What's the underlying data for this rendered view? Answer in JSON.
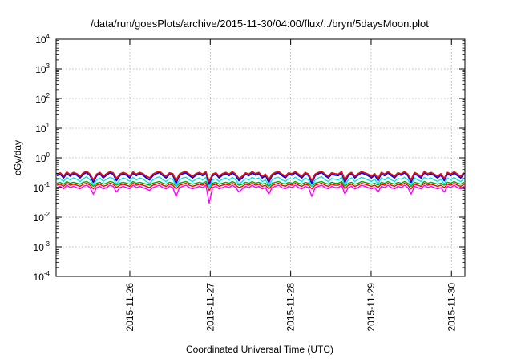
{
  "chart_data": {
    "type": "line",
    "title": "/data/run/goesPlots/archive/2015-11-30/04:00/flux/../bryn/5daysMoon.plot",
    "xlabel": "Coordinated Universal Time (UTC)",
    "ylabel": "cGy/day",
    "yscale": "log",
    "ylim": [
      0.0001,
      10000
    ],
    "xlim": [
      "2015-11-25T02:00",
      "2015-11-30T04:00"
    ],
    "grid": true,
    "y_ticks": [
      {
        "base": "10",
        "exp": "-4",
        "value": 0.0001
      },
      {
        "base": "10",
        "exp": "-3",
        "value": 0.001
      },
      {
        "base": "10",
        "exp": "-2",
        "value": 0.01
      },
      {
        "base": "10",
        "exp": "-1",
        "value": 0.1
      },
      {
        "base": "10",
        "exp": "0",
        "value": 1
      },
      {
        "base": "10",
        "exp": "1",
        "value": 10
      },
      {
        "base": "10",
        "exp": "2",
        "value": 100
      },
      {
        "base": "10",
        "exp": "3",
        "value": 1000
      },
      {
        "base": "10",
        "exp": "4",
        "value": 10000
      }
    ],
    "x_ticks": [
      "2015-11-26",
      "2015-11-27",
      "2015-11-28",
      "2015-11-29",
      "2015-11-30"
    ],
    "x_tick_values": [
      "2015-11-26T00:00",
      "2015-11-27T00:00",
      "2015-11-28T00:00",
      "2015-11-29T00:00",
      "2015-11-30T00:00"
    ],
    "series": [
      {
        "color": "#ff00ff",
        "typical": 0.1,
        "spike": 0.04,
        "values": [
          0.1,
          0.11,
          0.09,
          0.12,
          0.1,
          0.11,
          0.1,
          0.09,
          0.11,
          0.12,
          0.1,
          0.06,
          0.1,
          0.11,
          0.09,
          0.1,
          0.12,
          0.11,
          0.07,
          0.1,
          0.11,
          0.1,
          0.09,
          0.12,
          0.1,
          0.11,
          0.1,
          0.09,
          0.08,
          0.1,
          0.11,
          0.12,
          0.1,
          0.09,
          0.11,
          0.1,
          0.05,
          0.1,
          0.11,
          0.12,
          0.1,
          0.09,
          0.1,
          0.11,
          0.1,
          0.12,
          0.03,
          0.1,
          0.11,
          0.09,
          0.1,
          0.11,
          0.1,
          0.12,
          0.1,
          0.07,
          0.09,
          0.11,
          0.1,
          0.12,
          0.1,
          0.11,
          0.09,
          0.1,
          0.06,
          0.1,
          0.11,
          0.12,
          0.1,
          0.09,
          0.11,
          0.1,
          0.12,
          0.1,
          0.09,
          0.11,
          0.1,
          0.05,
          0.1,
          0.11,
          0.12,
          0.1,
          0.09,
          0.11,
          0.1,
          0.1,
          0.12,
          0.06,
          0.1,
          0.11,
          0.09,
          0.1,
          0.12,
          0.11,
          0.1,
          0.09,
          0.1,
          0.07,
          0.11,
          0.1,
          0.12,
          0.1,
          0.09,
          0.11,
          0.1,
          0.12,
          0.1,
          0.06,
          0.11,
          0.1,
          0.09,
          0.12,
          0.1,
          0.11,
          0.1,
          0.09,
          0.1,
          0.07,
          0.11,
          0.1,
          0.12,
          0.1,
          0.09,
          0.11
        ]
      },
      {
        "color": "#ff0000",
        "typical": 0.12,
        "values": [
          0.12,
          0.13,
          0.11,
          0.14,
          0.12,
          0.13,
          0.12,
          0.11,
          0.13,
          0.14,
          0.12,
          0.09,
          0.12,
          0.13,
          0.11,
          0.12,
          0.14,
          0.13,
          0.1,
          0.12,
          0.13,
          0.12,
          0.11,
          0.14,
          0.12,
          0.13,
          0.12,
          0.11,
          0.1,
          0.12,
          0.13,
          0.14,
          0.12,
          0.11,
          0.13,
          0.12,
          0.09,
          0.12,
          0.13,
          0.14,
          0.12,
          0.11,
          0.12,
          0.13,
          0.12,
          0.14,
          0.08,
          0.12,
          0.13,
          0.11,
          0.12,
          0.13,
          0.12,
          0.14,
          0.12,
          0.1,
          0.11,
          0.13,
          0.12,
          0.14,
          0.12,
          0.13,
          0.11,
          0.12,
          0.09,
          0.12,
          0.13,
          0.14,
          0.12,
          0.11,
          0.13,
          0.12,
          0.14,
          0.12,
          0.11,
          0.13,
          0.12,
          0.09,
          0.12,
          0.13,
          0.14,
          0.12,
          0.11,
          0.13,
          0.12,
          0.12,
          0.14,
          0.09,
          0.12,
          0.13,
          0.11,
          0.12,
          0.14,
          0.13,
          0.12,
          0.11,
          0.12,
          0.1,
          0.13,
          0.12,
          0.14,
          0.12,
          0.11,
          0.13,
          0.12,
          0.14,
          0.12,
          0.09,
          0.13,
          0.12,
          0.11,
          0.14,
          0.12,
          0.13,
          0.12,
          0.11,
          0.12,
          0.1,
          0.13,
          0.12,
          0.14,
          0.12,
          0.11,
          0.13
        ]
      },
      {
        "color": "#00aa00",
        "typical": 0.14,
        "values": [
          0.14,
          0.15,
          0.13,
          0.16,
          0.14,
          0.15,
          0.14,
          0.13,
          0.15,
          0.16,
          0.14,
          0.11,
          0.14,
          0.15,
          0.13,
          0.14,
          0.16,
          0.15,
          0.12,
          0.14,
          0.15,
          0.14,
          0.13,
          0.16,
          0.14,
          0.15,
          0.14,
          0.13,
          0.12,
          0.14,
          0.15,
          0.16,
          0.14,
          0.13,
          0.15,
          0.14,
          0.11,
          0.14,
          0.15,
          0.16,
          0.14,
          0.13,
          0.14,
          0.15,
          0.14,
          0.16,
          0.1,
          0.14,
          0.15,
          0.13,
          0.14,
          0.15,
          0.14,
          0.16,
          0.14,
          0.12,
          0.13,
          0.15,
          0.14,
          0.16,
          0.14,
          0.15,
          0.13,
          0.14,
          0.11,
          0.14,
          0.15,
          0.16,
          0.14,
          0.13,
          0.15,
          0.14,
          0.16,
          0.14,
          0.13,
          0.15,
          0.14,
          0.11,
          0.14,
          0.15,
          0.16,
          0.14,
          0.13,
          0.15,
          0.14,
          0.14,
          0.16,
          0.11,
          0.14,
          0.15,
          0.13,
          0.14,
          0.16,
          0.15,
          0.14,
          0.13,
          0.14,
          0.12,
          0.15,
          0.14,
          0.16,
          0.14,
          0.13,
          0.15,
          0.14,
          0.16,
          0.14,
          0.11,
          0.15,
          0.14,
          0.13,
          0.16,
          0.14,
          0.15,
          0.14,
          0.13,
          0.14,
          0.12,
          0.15,
          0.14,
          0.16,
          0.14,
          0.13,
          0.15
        ]
      },
      {
        "color": "#00e5e5",
        "typical": 0.18,
        "values": [
          0.18,
          0.2,
          0.16,
          0.22,
          0.18,
          0.21,
          0.19,
          0.16,
          0.2,
          0.23,
          0.18,
          0.12,
          0.18,
          0.21,
          0.16,
          0.19,
          0.22,
          0.2,
          0.13,
          0.18,
          0.21,
          0.19,
          0.16,
          0.22,
          0.18,
          0.21,
          0.19,
          0.16,
          0.14,
          0.18,
          0.21,
          0.23,
          0.18,
          0.16,
          0.2,
          0.19,
          0.11,
          0.18,
          0.21,
          0.22,
          0.18,
          0.16,
          0.19,
          0.21,
          0.18,
          0.22,
          0.1,
          0.18,
          0.2,
          0.16,
          0.19,
          0.21,
          0.18,
          0.22,
          0.18,
          0.13,
          0.16,
          0.2,
          0.18,
          0.22,
          0.19,
          0.21,
          0.16,
          0.18,
          0.12,
          0.18,
          0.21,
          0.22,
          0.18,
          0.16,
          0.2,
          0.19,
          0.22,
          0.18,
          0.16,
          0.21,
          0.18,
          0.11,
          0.18,
          0.21,
          0.23,
          0.18,
          0.16,
          0.2,
          0.19,
          0.18,
          0.22,
          0.12,
          0.18,
          0.21,
          0.16,
          0.19,
          0.22,
          0.2,
          0.18,
          0.16,
          0.19,
          0.13,
          0.21,
          0.18,
          0.22,
          0.18,
          0.16,
          0.2,
          0.19,
          0.22,
          0.18,
          0.12,
          0.21,
          0.18,
          0.16,
          0.22,
          0.19,
          0.21,
          0.18,
          0.16,
          0.19,
          0.13,
          0.21,
          0.18,
          0.22,
          0.18,
          0.16,
          0.2
        ]
      },
      {
        "color": "#0000ff",
        "typical": 0.25,
        "values": [
          0.25,
          0.28,
          0.21,
          0.3,
          0.24,
          0.29,
          0.26,
          0.21,
          0.28,
          0.32,
          0.25,
          0.15,
          0.25,
          0.29,
          0.21,
          0.26,
          0.31,
          0.28,
          0.17,
          0.25,
          0.29,
          0.26,
          0.21,
          0.3,
          0.25,
          0.29,
          0.26,
          0.21,
          0.18,
          0.25,
          0.29,
          0.32,
          0.25,
          0.21,
          0.28,
          0.26,
          0.14,
          0.25,
          0.29,
          0.31,
          0.25,
          0.21,
          0.26,
          0.29,
          0.25,
          0.31,
          0.13,
          0.25,
          0.28,
          0.21,
          0.26,
          0.29,
          0.25,
          0.31,
          0.25,
          0.17,
          0.21,
          0.28,
          0.25,
          0.31,
          0.26,
          0.29,
          0.21,
          0.25,
          0.15,
          0.25,
          0.29,
          0.31,
          0.25,
          0.21,
          0.28,
          0.26,
          0.31,
          0.25,
          0.21,
          0.29,
          0.25,
          0.14,
          0.25,
          0.29,
          0.32,
          0.25,
          0.21,
          0.28,
          0.26,
          0.25,
          0.31,
          0.15,
          0.25,
          0.29,
          0.21,
          0.26,
          0.31,
          0.28,
          0.25,
          0.21,
          0.26,
          0.17,
          0.29,
          0.25,
          0.31,
          0.25,
          0.21,
          0.28,
          0.26,
          0.31,
          0.25,
          0.15,
          0.29,
          0.25,
          0.21,
          0.31,
          0.26,
          0.29,
          0.25,
          0.21,
          0.26,
          0.17,
          0.29,
          0.25,
          0.31,
          0.25,
          0.21,
          0.28
        ]
      },
      {
        "color": "#e01010",
        "typical": 0.28,
        "values": [
          0.28,
          0.31,
          0.24,
          0.33,
          0.27,
          0.32,
          0.29,
          0.24,
          0.31,
          0.35,
          0.28,
          0.18,
          0.28,
          0.32,
          0.24,
          0.29,
          0.34,
          0.31,
          0.2,
          0.28,
          0.32,
          0.29,
          0.24,
          0.33,
          0.28,
          0.32,
          0.29,
          0.24,
          0.21,
          0.28,
          0.32,
          0.35,
          0.28,
          0.24,
          0.31,
          0.29,
          0.17,
          0.28,
          0.32,
          0.34,
          0.28,
          0.24,
          0.29,
          0.32,
          0.28,
          0.34,
          0.16,
          0.28,
          0.31,
          0.24,
          0.29,
          0.32,
          0.28,
          0.34,
          0.28,
          0.2,
          0.24,
          0.31,
          0.28,
          0.34,
          0.29,
          0.32,
          0.24,
          0.28,
          0.18,
          0.28,
          0.32,
          0.34,
          0.28,
          0.24,
          0.31,
          0.29,
          0.34,
          0.28,
          0.24,
          0.32,
          0.28,
          0.17,
          0.28,
          0.32,
          0.35,
          0.28,
          0.24,
          0.31,
          0.29,
          0.28,
          0.34,
          0.18,
          0.28,
          0.32,
          0.24,
          0.29,
          0.34,
          0.31,
          0.28,
          0.24,
          0.29,
          0.2,
          0.32,
          0.28,
          0.34,
          0.28,
          0.24,
          0.31,
          0.29,
          0.34,
          0.28,
          0.18,
          0.32,
          0.28,
          0.24,
          0.34,
          0.29,
          0.32,
          0.28,
          0.24,
          0.29,
          0.2,
          0.32,
          0.28,
          0.34,
          0.28,
          0.24,
          0.31
        ]
      }
    ]
  }
}
